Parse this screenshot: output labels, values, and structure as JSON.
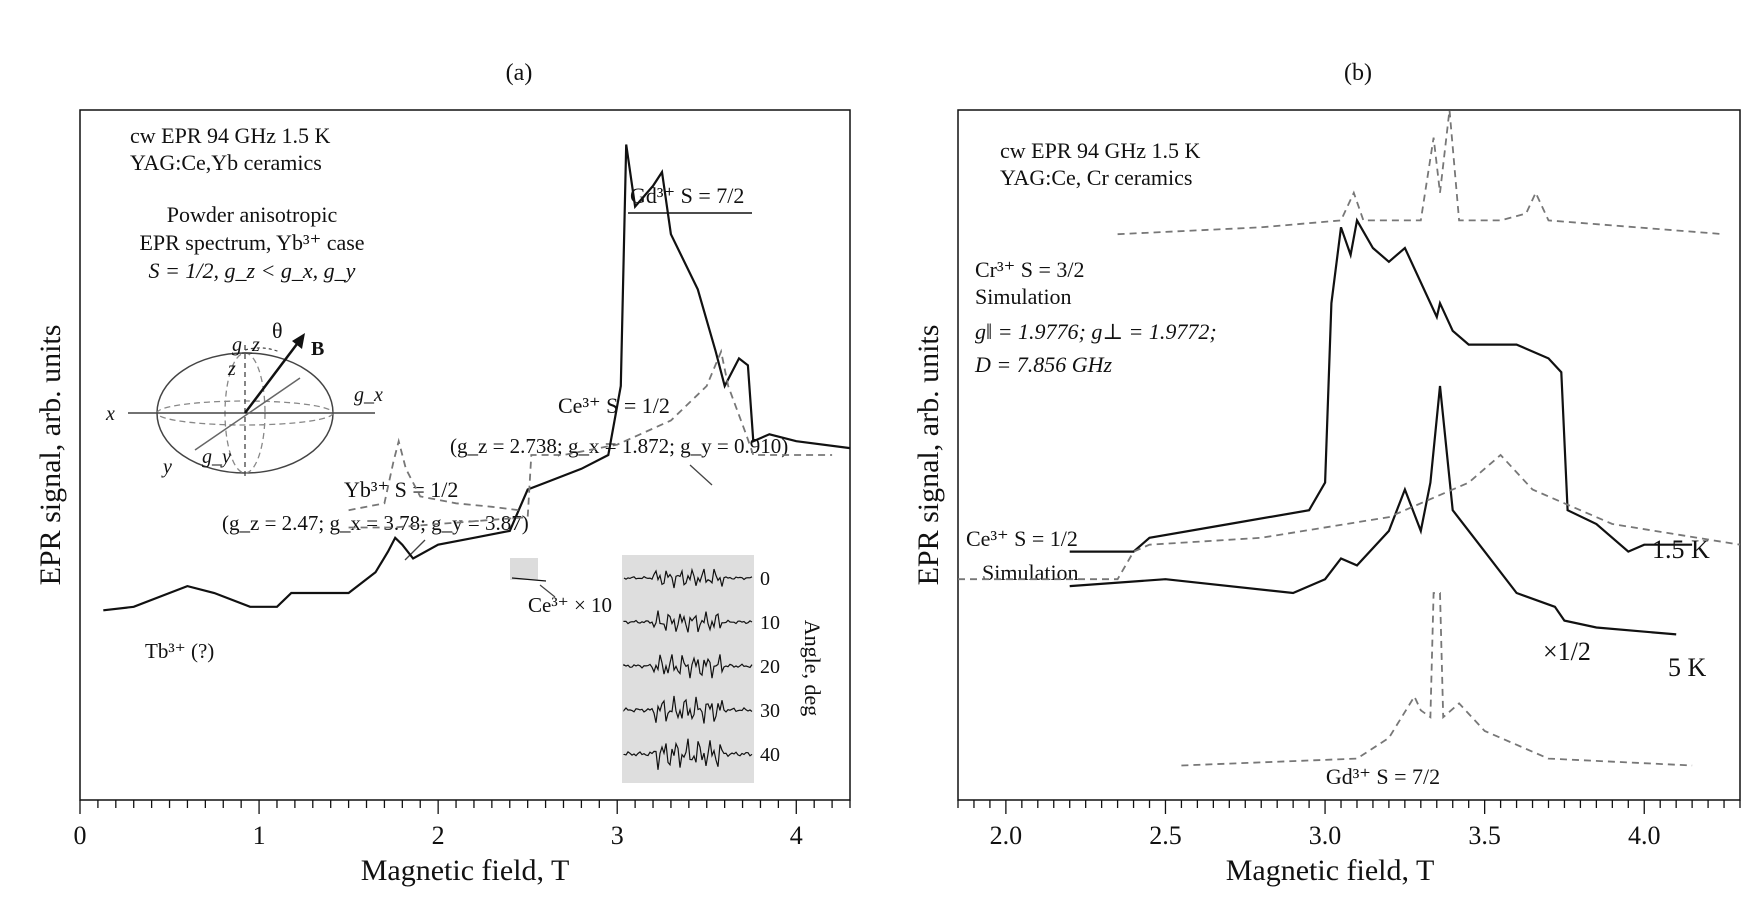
{
  "panels": [
    {
      "label": "(a)",
      "xlabel": "Magnetic field, T",
      "ylabel": "EPR signal, arb. units",
      "xlim": [
        0,
        4.3
      ],
      "ylim": [
        0,
        1
      ],
      "xticks": [
        0,
        1,
        2,
        3,
        4
      ],
      "xtick_labels": [
        "0",
        "1",
        "2",
        "3",
        "4"
      ],
      "minor_tick_step": 0.1,
      "header": [
        "cw EPR 94 GHz 1.5 K",
        "YAG:Ce,Yb ceramics"
      ],
      "diagram_text": [
        "Powder anisotropic",
        "EPR spectrum, Yb³⁺ case",
        "S = 1/2, g_z < g_x, g_y"
      ],
      "axis_letters": [
        "g_z",
        "θ",
        "B",
        "z",
        "g_x",
        "x",
        "y",
        "g_y"
      ],
      "annotations": [
        "Gd³⁺ S = 7/2",
        "Ce³⁺  S = 1/2",
        "(g_z = 2.738;  g_x = 1.872; g_y = 0.910)",
        "Yb³⁺ S = 1/2",
        "(g_z = 2.47;  g_x = 3.78;  g_y = 3.87)",
        "Tb³⁺ (?)",
        "Ce³⁺ × 10"
      ],
      "inset_label": "Angle, deg",
      "inset_ticks": [
        "0",
        "10",
        "20",
        "30",
        "40"
      ]
    },
    {
      "label": "(b)",
      "xlabel": "Magnetic field, T",
      "ylabel": "EPR signal, arb. units",
      "xlim": [
        1.85,
        4.3
      ],
      "ylim": [
        0,
        1
      ],
      "xticks": [
        2.0,
        2.5,
        3.0,
        3.5,
        4.0
      ],
      "xtick_labels": [
        "2.0",
        "2.5",
        "3.0",
        "3.5",
        "4.0"
      ],
      "minor_tick_step": 0.05,
      "header": [
        "cw EPR 94 GHz 1.5 K",
        "YAG:Ce, Cr ceramics"
      ],
      "annotations": [
        "Cr³⁺ S = 3/2",
        "Simulation",
        "g‖ = 1.9776; g⊥ = 1.9772;",
        "D = 7.856 GHz",
        "Ce³⁺ S = 1/2",
        "Simulation",
        "Gd³⁺ S = 7/2",
        "1.5 K",
        "5 K",
        "×1/2"
      ]
    }
  ],
  "chart_data": [
    {
      "type": "line",
      "series": [
        {
          "style": "solid",
          "x": [
            0.13,
            0.3,
            0.5,
            0.6,
            0.75,
            0.95,
            1.1,
            1.18,
            1.3,
            1.5,
            1.65,
            1.72,
            1.76,
            1.8,
            1.86,
            2.0,
            2.2,
            2.4,
            2.45,
            2.5,
            2.6,
            2.8,
            2.95,
            3.02,
            3.05,
            3.1,
            3.2,
            3.25,
            3.3,
            3.45,
            3.55,
            3.6,
            3.68,
            3.73,
            3.76,
            3.85,
            4.0,
            4.3
          ],
          "y": [
            0.275,
            0.28,
            0.3,
            0.31,
            0.3,
            0.28,
            0.28,
            0.3,
            0.3,
            0.3,
            0.33,
            0.36,
            0.38,
            0.37,
            0.35,
            0.37,
            0.38,
            0.39,
            0.42,
            0.45,
            0.46,
            0.48,
            0.5,
            0.6,
            0.95,
            0.86,
            0.89,
            0.91,
            0.82,
            0.74,
            0.65,
            0.6,
            0.64,
            0.63,
            0.52,
            0.53,
            0.52,
            0.51
          ]
        },
        {
          "style": "dashed",
          "x": [
            1.5,
            1.7,
            1.75,
            1.78,
            1.82,
            1.9,
            2.1,
            2.3,
            2.45
          ],
          "y": [
            0.42,
            0.43,
            0.49,
            0.52,
            0.48,
            0.44,
            0.43,
            0.425,
            0.42
          ]
        },
        {
          "style": "dashed",
          "x": [
            1.5,
            1.75,
            2.0,
            2.5,
            2.52,
            2.7,
            3.0,
            3.3,
            3.5,
            3.58,
            3.62,
            3.72,
            3.76,
            4.2
          ],
          "y": [
            0.395,
            0.395,
            0.4,
            0.41,
            0.5,
            0.5,
            0.515,
            0.55,
            0.6,
            0.65,
            0.6,
            0.53,
            0.5,
            0.5
          ]
        }
      ]
    },
    {
      "type": "line",
      "series": [
        {
          "name": "1.5 K",
          "style": "solid",
          "x": [
            2.2,
            2.4,
            2.45,
            2.7,
            2.95,
            3.0,
            3.02,
            3.05,
            3.08,
            3.1,
            3.15,
            3.2,
            3.25,
            3.35,
            3.36,
            3.4,
            3.45,
            3.52,
            3.6,
            3.7,
            3.74,
            3.76,
            3.85,
            3.95,
            4.0,
            4.15
          ],
          "y": [
            0.36,
            0.36,
            0.38,
            0.4,
            0.42,
            0.46,
            0.72,
            0.83,
            0.79,
            0.84,
            0.8,
            0.78,
            0.8,
            0.7,
            0.72,
            0.68,
            0.66,
            0.66,
            0.66,
            0.64,
            0.62,
            0.42,
            0.4,
            0.36,
            0.37,
            0.37
          ]
        },
        {
          "name": "5 K",
          "style": "solid",
          "x": [
            2.2,
            2.5,
            2.9,
            3.0,
            3.05,
            3.1,
            3.2,
            3.25,
            3.3,
            3.33,
            3.36,
            3.4,
            3.5,
            3.6,
            3.72,
            3.75,
            3.85,
            4.1
          ],
          "y": [
            0.31,
            0.32,
            0.3,
            0.32,
            0.35,
            0.34,
            0.39,
            0.45,
            0.39,
            0.46,
            0.6,
            0.42,
            0.36,
            0.3,
            0.28,
            0.26,
            0.25,
            0.24
          ]
        },
        {
          "name": "Cr³⁺ S = 3/2 Simulation",
          "style": "dashed",
          "x": [
            2.35,
            2.8,
            3.05,
            3.09,
            3.12,
            3.3,
            3.34,
            3.36,
            3.39,
            3.42,
            3.55,
            3.63,
            3.66,
            3.7,
            4.25
          ],
          "y": [
            0.82,
            0.83,
            0.84,
            0.88,
            0.84,
            0.84,
            0.96,
            0.88,
            1.0,
            0.84,
            0.84,
            0.85,
            0.88,
            0.84,
            0.82
          ]
        },
        {
          "name": "Ce³⁺ S = 1/2 Simulation",
          "style": "dashed",
          "x": [
            1.85,
            2.35,
            2.4,
            2.45,
            2.8,
            3.2,
            3.45,
            3.55,
            3.65,
            3.9,
            4.3
          ],
          "y": [
            0.32,
            0.32,
            0.36,
            0.37,
            0.38,
            0.41,
            0.46,
            0.5,
            0.45,
            0.4,
            0.37
          ]
        },
        {
          "name": "Gd³⁺ S = 7/2 Simulation",
          "style": "dashed",
          "x": [
            2.55,
            3.1,
            3.2,
            3.28,
            3.3,
            3.33,
            3.34,
            3.36,
            3.37,
            3.42,
            3.5,
            3.7,
            4.15
          ],
          "y": [
            0.05,
            0.06,
            0.09,
            0.15,
            0.13,
            0.12,
            0.3,
            0.3,
            0.12,
            0.14,
            0.1,
            0.06,
            0.05
          ]
        }
      ]
    }
  ]
}
